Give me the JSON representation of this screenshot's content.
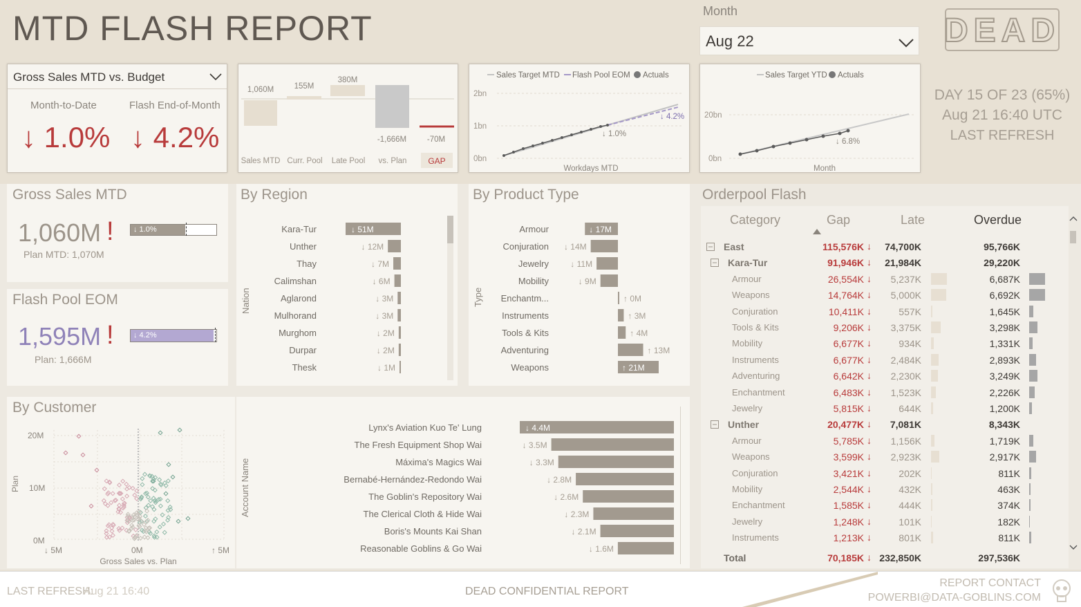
{
  "header": {
    "title": "MTD FLASH REPORT",
    "month_label": "Month",
    "month_value": "Aug 22",
    "logo_text": "DEAD",
    "day_status": "DAY 15 OF 23 (65%)",
    "refresh_time": "Aug 21 16:40 UTC",
    "refresh_label": "LAST REFRESH"
  },
  "kpi_card": {
    "dropdown": "Gross Sales MTD vs. Budget",
    "mtd_label": "Month-to-Date",
    "eom_label": "Flash End-of-Month",
    "mtd_value": "↓ 1.0%",
    "eom_value": "↓ 4.2%"
  },
  "waterfall": {
    "categories": [
      "Sales MTD",
      "Curr. Pool",
      "Late Pool",
      "vs. Plan",
      "GAP"
    ],
    "labels": [
      "1,060M",
      "155M",
      "380M",
      "-1,666M",
      "-70M"
    ]
  },
  "mtd_line": {
    "legend": [
      "Sales Target MTD",
      "Flash Pool EOM",
      "Actuals"
    ],
    "yticks": [
      "2bn",
      "1bn",
      "0bn"
    ],
    "xlabel": "Workdays MTD",
    "annot_actual": "↓ 1.0%",
    "annot_flash": "↓ 4.2%"
  },
  "ytd_line": {
    "legend": [
      "Sales Target YTD",
      "Actuals"
    ],
    "yticks": [
      "20bn",
      "0bn"
    ],
    "xlabel": "Month",
    "annot": "↓ 6.8%"
  },
  "gross_sales": {
    "title": "Gross Sales MTD",
    "value": "1,060M",
    "bang": "!",
    "bar_label": "↓ 1.0%",
    "plan": "Plan MTD: 1,070M"
  },
  "flash_pool": {
    "title": "Flash Pool EOM",
    "value": "1,595M",
    "bang": "!",
    "bar_label": "↓ 4.2%",
    "plan": "Plan: 1,666M"
  },
  "chart_data": [
    {
      "type": "bar",
      "title": "By Region",
      "ylabel": "Nation",
      "categories": [
        "Kara-Tur",
        "Unther",
        "Thay",
        "Calimshan",
        "Aglarond",
        "Mulhorand",
        "Murghom",
        "Durpar",
        "Thesk"
      ],
      "values": [
        -51,
        -12,
        -7,
        -6,
        -3,
        -3,
        -2,
        -2,
        -1
      ],
      "labels": [
        "↓ 51M",
        "↓ 12M",
        "↓ 7M",
        "↓ 6M",
        "↓ 3M",
        "↓ 3M",
        "↓ 2M",
        "↓ 2M",
        "↓ 1M"
      ]
    },
    {
      "type": "bar",
      "title": "By Product Type",
      "ylabel": "Type",
      "categories": [
        "Armour",
        "Conjuration",
        "Jewelry",
        "Mobility",
        "Enchantm...",
        "Instruments",
        "Tools & Kits",
        "Adventuring",
        "Weapons"
      ],
      "values": [
        -17,
        -14,
        -11,
        -9,
        0,
        3,
        4,
        13,
        21
      ],
      "labels": [
        "↓ 17M",
        "↓ 14M",
        "↓ 11M",
        "↓ 9M",
        "↑ 0M",
        "↑ 3M",
        "↑ 4M",
        "↑ 13M",
        "↑ 21M"
      ]
    },
    {
      "type": "scatter",
      "title": "By Customer",
      "xlabel": "Gross Sales vs. Plan",
      "ylabel": "Plan",
      "xticks": [
        "↓ 5M",
        "0M",
        "↑ 5M"
      ],
      "yticks": [
        "20M",
        "10M",
        "0M"
      ],
      "xlim": [
        -5,
        5
      ],
      "ylim": [
        0,
        20
      ]
    },
    {
      "type": "bar",
      "ylabel": "Account Name",
      "categories": [
        "Lynx's Aviation Kuo Te' Lung",
        "The Fresh Equipment Shop Wai",
        "Máxima's Magics Wai",
        "Bernabé-Hernández-Redondo Wai",
        "The Goblin's Repository Wai",
        "The Clerical Cloth & Hide Wai",
        "Boris's Mounts Kai Shan",
        "Reasonable Goblins & Go Wai"
      ],
      "values": [
        -4.4,
        -3.5,
        -3.3,
        -2.8,
        -2.6,
        -2.3,
        -2.1,
        -1.6
      ],
      "labels": [
        "↓ 4.4M",
        "↓ 3.5M",
        "↓ 3.3M",
        "↓ 2.8M",
        "↓ 2.6M",
        "↓ 2.3M",
        "↓ 2.1M",
        "↓ 1.6M"
      ]
    }
  ],
  "orderpool": {
    "title": "Orderpool Flash",
    "columns": [
      "Category",
      "Gap",
      "Late",
      "Overdue"
    ],
    "rows": [
      {
        "level": 0,
        "cat": "East",
        "gap": "115,576K",
        "late": "74,700K",
        "overdue": "95,766K"
      },
      {
        "level": 1,
        "cat": "Kara-Tur",
        "gap": "91,946K",
        "late": "21,984K",
        "overdue": "29,220K"
      },
      {
        "level": 2,
        "cat": "Armour",
        "gap": "26,554K",
        "late": "5,237K",
        "overdue": "6,687K",
        "lb": 0.95,
        "ob": 0.9
      },
      {
        "level": 2,
        "cat": "Weapons",
        "gap": "14,764K",
        "late": "5,000K",
        "overdue": "6,692K",
        "lb": 0.9,
        "ob": 0.9
      },
      {
        "level": 2,
        "cat": "Conjuration",
        "gap": "10,411K",
        "late": "557K",
        "overdue": "1,645K",
        "lb": 0.1,
        "ob": 0.22
      },
      {
        "level": 2,
        "cat": "Tools & Kits",
        "gap": "9,206K",
        "late": "3,375K",
        "overdue": "3,298K",
        "lb": 0.6,
        "ob": 0.45
      },
      {
        "level": 2,
        "cat": "Mobility",
        "gap": "6,677K",
        "late": "934K",
        "overdue": "1,331K",
        "lb": 0.15,
        "ob": 0.18
      },
      {
        "level": 2,
        "cat": "Instruments",
        "gap": "6,677K",
        "late": "2,484K",
        "overdue": "2,893K",
        "lb": 0.45,
        "ob": 0.4
      },
      {
        "level": 2,
        "cat": "Adventuring",
        "gap": "6,642K",
        "late": "2,230K",
        "overdue": "3,249K",
        "lb": 0.4,
        "ob": 0.45
      },
      {
        "level": 2,
        "cat": "Enchantment",
        "gap": "6,483K",
        "late": "1,523K",
        "overdue": "2,226K",
        "lb": 0.28,
        "ob": 0.3
      },
      {
        "level": 2,
        "cat": "Jewelry",
        "gap": "5,815K",
        "late": "644K",
        "overdue": "1,200K",
        "lb": 0.12,
        "ob": 0.16
      },
      {
        "level": 1,
        "cat": "Unther",
        "gap": "20,477K",
        "late": "7,081K",
        "overdue": "8,343K"
      },
      {
        "level": 2,
        "cat": "Armour",
        "gap": "5,785K",
        "late": "1,156K",
        "overdue": "1,719K",
        "lb": 0.2,
        "ob": 0.23
      },
      {
        "level": 2,
        "cat": "Weapons",
        "gap": "3,599K",
        "late": "2,923K",
        "overdue": "2,917K",
        "lb": 0.5,
        "ob": 0.4
      },
      {
        "level": 2,
        "cat": "Conjuration",
        "gap": "3,421K",
        "late": "202K",
        "overdue": "811K",
        "lb": 0.05,
        "ob": 0.11
      },
      {
        "level": 2,
        "cat": "Mobility",
        "gap": "2,544K",
        "late": "432K",
        "overdue": "463K",
        "lb": 0.08,
        "ob": 0.07
      },
      {
        "level": 2,
        "cat": "Enchantment",
        "gap": "1,585K",
        "late": "444K",
        "overdue": "374K",
        "lb": 0.08,
        "ob": 0.06
      },
      {
        "level": 2,
        "cat": "Jewelry",
        "gap": "1,248K",
        "late": "101K",
        "overdue": "182K",
        "lb": 0.03,
        "ob": 0.03
      },
      {
        "level": 2,
        "cat": "Instruments",
        "gap": "1,213K",
        "late": "801K",
        "overdue": "811K",
        "lb": 0.14,
        "ob": 0.11
      }
    ],
    "total": {
      "cat": "Total",
      "gap": "70,185K",
      "late": "232,850K",
      "overdue": "297,536K"
    }
  },
  "footer": {
    "refresh_label": "LAST REFRESH:",
    "refresh_value": "Aug 21 16:40",
    "confidential": "DEAD CONFIDENTIAL REPORT",
    "contact_label": "REPORT CONTACT",
    "contact_email": "POWERBI@DATA-GOBLINS.COM"
  }
}
